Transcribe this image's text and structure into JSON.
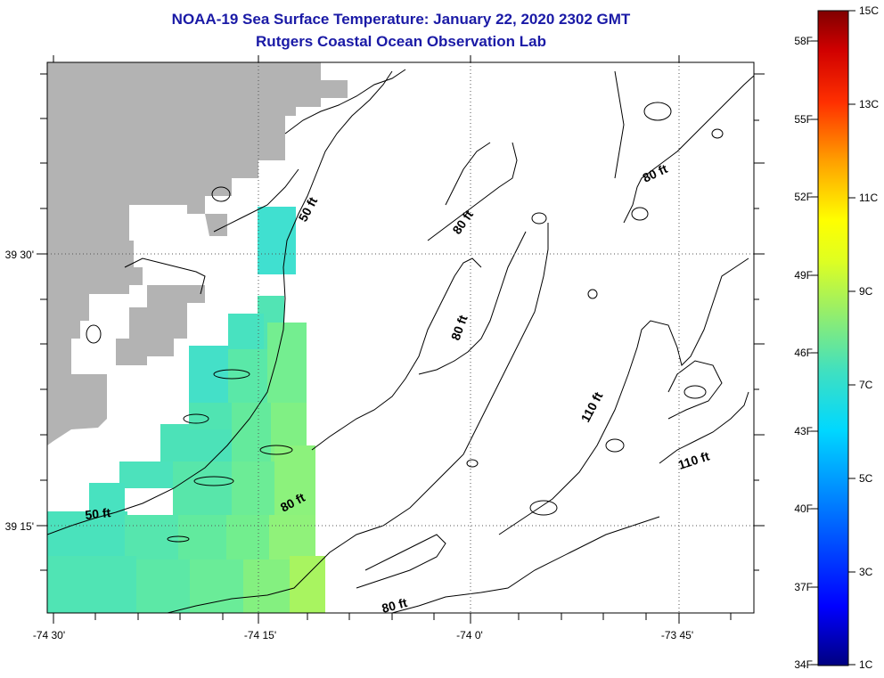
{
  "title": {
    "line1": "NOAA-19 Sea Surface Temperature:  January 22, 2020 2302 GMT",
    "line2": "Rutgers Coastal Ocean Observation Lab"
  },
  "map": {
    "lon_labels": [
      "-74 30'",
      "-74 15'",
      "-74 0'",
      "-73 45'"
    ],
    "lat_labels": [
      "39 30'",
      "39 15'"
    ],
    "contour_labels": [
      "50 ft",
      "80 ft",
      "80 ft",
      "80 ft",
      "50 ft",
      "80 ft",
      "80 ft",
      "110 ft",
      "110 ft"
    ],
    "colors": {
      "land": "#b3b3b3",
      "grid": "#000000"
    }
  },
  "colorbar": {
    "celsius_labels": [
      "15C",
      "13C",
      "11C",
      "9C",
      "7C",
      "5C",
      "3C",
      "1C"
    ],
    "fahrenheit_labels": [
      "58F",
      "55F",
      "52F",
      "49F",
      "46F",
      "43F",
      "40F",
      "37F",
      "34F"
    ],
    "range_c": [
      1,
      15
    ],
    "colors": [
      "#000080",
      "#0000ff",
      "#0080ff",
      "#00e0ff",
      "#40e0c0",
      "#80ff80",
      "#c0ff40",
      "#ffff00",
      "#ffa000",
      "#ff4000",
      "#e00000",
      "#800000"
    ]
  }
}
